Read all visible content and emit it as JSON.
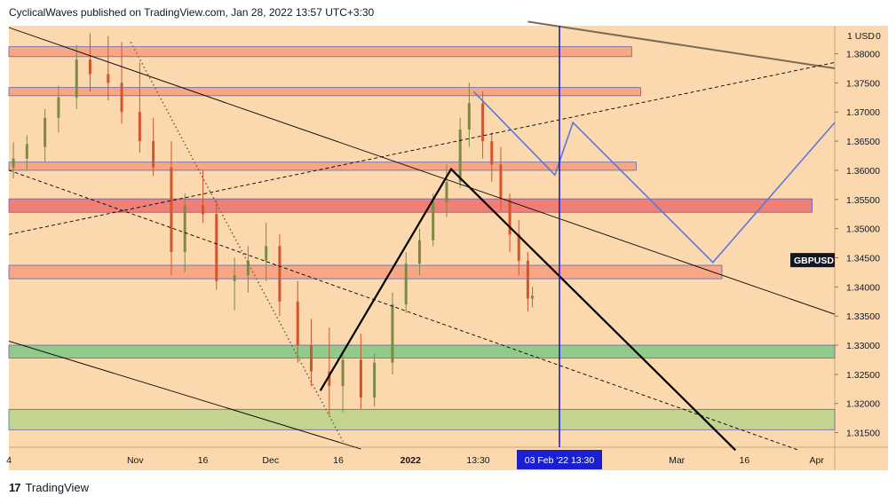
{
  "header": {
    "publish_line": "CyclicalWaves published on TradingView.com, Jan 28, 2022 13:57 UTC+3:30"
  },
  "footer": {
    "logo_glyph": "17",
    "brand": "TradingView"
  },
  "colors": {
    "background": "#fbd8ad",
    "zone_salmon": "#f7a583",
    "zone_red": "#f07b74",
    "zone_green": "#8dc98b",
    "zone_olive": "#bfd48f",
    "candle_up": "#7d8a43",
    "candle_down": "#d2552e",
    "projection": "#5b78dc",
    "cursor": "#1a1fd0",
    "channel_line": "#000000",
    "long_trend": "#7a6a55"
  },
  "chart_data": {
    "type": "candlestick",
    "symbol": "GBPUSD",
    "price_axis": {
      "unit_label": "1 USD",
      "unit_suffix": "0",
      "ticks": [
        "1.38000",
        "1.37500",
        "1.37000",
        "1.36500",
        "1.36000",
        "1.35500",
        "1.35000",
        "1.34500",
        "1.34000",
        "1.33500",
        "1.33000",
        "1.32500",
        "1.32000",
        "1.31500"
      ],
      "ylim": [
        1.3125,
        1.3848
      ]
    },
    "time_axis": {
      "tick_labels": [
        {
          "label": "4",
          "date": "2021-10-04"
        },
        {
          "label": "Nov",
          "date": "2021-11-01"
        },
        {
          "label": "16",
          "date": "2021-11-16"
        },
        {
          "label": "Dec",
          "date": "2021-12-01"
        },
        {
          "label": "16",
          "date": "2021-12-16"
        },
        {
          "label": "2022",
          "date": "2022-01-01"
        },
        {
          "label": "13:30",
          "date": "2022-01-16"
        },
        {
          "label": "Mar",
          "date": "2022-03-01"
        },
        {
          "label": "16",
          "date": "2022-03-16"
        },
        {
          "label": "Apr",
          "date": "2022-04-01"
        }
      ],
      "xlim": [
        "2021-10-04",
        "2022-04-05"
      ],
      "cursor_label": "03 Feb '22   13:30",
      "cursor_date": "2022-02-03"
    },
    "last_price_label": "GBPUSD",
    "zones": [
      {
        "from": 1.3795,
        "to": 1.3812,
        "start": "2021-10-04",
        "end": "2022-02-19",
        "color": "zone_salmon"
      },
      {
        "from": 1.3728,
        "to": 1.3742,
        "start": "2021-10-04",
        "end": "2022-02-21",
        "color": "zone_salmon"
      },
      {
        "from": 1.36,
        "to": 1.3614,
        "start": "2021-10-04",
        "end": "2022-02-20",
        "color": "zone_salmon"
      },
      {
        "from": 1.3528,
        "to": 1.3551,
        "start": "2021-10-04",
        "end": "2022-03-31",
        "color": "zone_red"
      },
      {
        "from": 1.3414,
        "to": 1.3437,
        "start": "2021-10-04",
        "end": "2022-03-11",
        "color": "zone_salmon"
      },
      {
        "from": 1.3278,
        "to": 1.33,
        "start": "2021-10-04",
        "end": "2022-04-05",
        "color": "zone_green"
      },
      {
        "from": 1.3155,
        "to": 1.319,
        "start": "2021-10-04",
        "end": "2022-04-05",
        "color": "zone_olive"
      }
    ],
    "lines": [
      {
        "kind": "long_trend",
        "points": [
          [
            "2022-01-27",
            1.3855
          ],
          [
            "2022-04-05",
            1.3775
          ]
        ]
      },
      {
        "kind": "channel_thin",
        "points": [
          [
            "2021-10-04",
            1.3845
          ],
          [
            "2022-04-05",
            1.3353
          ]
        ]
      },
      {
        "kind": "channel_thin",
        "points": [
          [
            "2021-10-04",
            1.3307
          ],
          [
            "2021-12-21",
            1.3122
          ]
        ]
      },
      {
        "kind": "dashed",
        "points": [
          [
            "2021-10-04",
            1.36
          ],
          [
            "2022-03-28",
            1.312
          ]
        ]
      },
      {
        "kind": "dashed",
        "points": [
          [
            "2021-10-04",
            1.349
          ],
          [
            "2022-04-05",
            1.3785
          ]
        ]
      },
      {
        "kind": "dotted",
        "points": [
          [
            "2021-10-31",
            1.382
          ],
          [
            "2021-12-17",
            1.3135
          ]
        ]
      },
      {
        "kind": "bold",
        "points": [
          [
            "2021-12-12",
            1.3222
          ],
          [
            "2022-01-10",
            1.3602
          ],
          [
            "2022-03-14",
            1.312
          ]
        ]
      },
      {
        "kind": "projection",
        "points": [
          [
            "2022-01-15",
            1.3735
          ],
          [
            "2022-02-02",
            1.3592
          ],
          [
            "2022-02-06",
            1.3682
          ],
          [
            "2022-03-09",
            1.3442
          ],
          [
            "2022-04-05",
            1.3682
          ]
        ]
      },
      {
        "kind": "cursor_vertical",
        "points": [
          [
            "2022-02-03",
            1.3848
          ],
          [
            "2022-02-03",
            1.3125
          ]
        ]
      }
    ],
    "ohlc_daily": [
      {
        "d": "2021-10-05",
        "o": 1.3605,
        "h": 1.3648,
        "l": 1.3586,
        "c": 1.362
      },
      {
        "d": "2021-10-08",
        "o": 1.362,
        "h": 1.366,
        "l": 1.36,
        "c": 1.3645
      },
      {
        "d": "2021-10-12",
        "o": 1.364,
        "h": 1.3705,
        "l": 1.3615,
        "c": 1.369
      },
      {
        "d": "2021-10-15",
        "o": 1.369,
        "h": 1.3745,
        "l": 1.3665,
        "c": 1.3725
      },
      {
        "d": "2021-10-19",
        "o": 1.3725,
        "h": 1.3815,
        "l": 1.3705,
        "c": 1.379
      },
      {
        "d": "2021-10-22",
        "o": 1.379,
        "h": 1.3835,
        "l": 1.3735,
        "c": 1.3765
      },
      {
        "d": "2021-10-26",
        "o": 1.3765,
        "h": 1.383,
        "l": 1.372,
        "c": 1.375
      },
      {
        "d": "2021-10-29",
        "o": 1.375,
        "h": 1.382,
        "l": 1.368,
        "c": 1.37
      },
      {
        "d": "2021-11-02",
        "o": 1.37,
        "h": 1.3785,
        "l": 1.363,
        "c": 1.365
      },
      {
        "d": "2021-11-05",
        "o": 1.365,
        "h": 1.369,
        "l": 1.359,
        "c": 1.3605
      },
      {
        "d": "2021-11-09",
        "o": 1.3605,
        "h": 1.365,
        "l": 1.342,
        "c": 1.346
      },
      {
        "d": "2021-11-12",
        "o": 1.346,
        "h": 1.356,
        "l": 1.3425,
        "c": 1.354
      },
      {
        "d": "2021-11-16",
        "o": 1.354,
        "h": 1.36,
        "l": 1.351,
        "c": 1.3525
      },
      {
        "d": "2021-11-19",
        "o": 1.3525,
        "h": 1.355,
        "l": 1.3395,
        "c": 1.341
      },
      {
        "d": "2021-11-23",
        "o": 1.341,
        "h": 1.345,
        "l": 1.336,
        "c": 1.342
      },
      {
        "d": "2021-11-26",
        "o": 1.342,
        "h": 1.347,
        "l": 1.339,
        "c": 1.3445
      },
      {
        "d": "2021-11-30",
        "o": 1.3445,
        "h": 1.351,
        "l": 1.341,
        "c": 1.347
      },
      {
        "d": "2021-12-03",
        "o": 1.347,
        "h": 1.349,
        "l": 1.335,
        "c": 1.3375
      },
      {
        "d": "2021-12-07",
        "o": 1.3375,
        "h": 1.341,
        "l": 1.327,
        "c": 1.33
      },
      {
        "d": "2021-12-10",
        "o": 1.33,
        "h": 1.3345,
        "l": 1.323,
        "c": 1.3255
      },
      {
        "d": "2021-12-14",
        "o": 1.3255,
        "h": 1.333,
        "l": 1.318,
        "c": 1.323
      },
      {
        "d": "2021-12-17",
        "o": 1.323,
        "h": 1.329,
        "l": 1.3185,
        "c": 1.3275
      },
      {
        "d": "2021-12-21",
        "o": 1.3275,
        "h": 1.332,
        "l": 1.319,
        "c": 1.321
      },
      {
        "d": "2021-12-24",
        "o": 1.321,
        "h": 1.3285,
        "l": 1.3195,
        "c": 1.327
      },
      {
        "d": "2021-12-28",
        "o": 1.327,
        "h": 1.339,
        "l": 1.325,
        "c": 1.337
      },
      {
        "d": "2021-12-31",
        "o": 1.337,
        "h": 1.346,
        "l": 1.3355,
        "c": 1.344
      },
      {
        "d": "2022-01-03",
        "o": 1.344,
        "h": 1.35,
        "l": 1.342,
        "c": 1.348
      },
      {
        "d": "2022-01-06",
        "o": 1.348,
        "h": 1.356,
        "l": 1.347,
        "c": 1.3545
      },
      {
        "d": "2022-01-09",
        "o": 1.3545,
        "h": 1.361,
        "l": 1.352,
        "c": 1.358
      },
      {
        "d": "2022-01-12",
        "o": 1.358,
        "h": 1.369,
        "l": 1.357,
        "c": 1.367
      },
      {
        "d": "2022-01-14",
        "o": 1.367,
        "h": 1.375,
        "l": 1.364,
        "c": 1.3715
      },
      {
        "d": "2022-01-17",
        "o": 1.3715,
        "h": 1.3735,
        "l": 1.362,
        "c": 1.365
      },
      {
        "d": "2022-01-19",
        "o": 1.365,
        "h": 1.3665,
        "l": 1.358,
        "c": 1.361
      },
      {
        "d": "2022-01-21",
        "o": 1.361,
        "h": 1.364,
        "l": 1.353,
        "c": 1.355
      },
      {
        "d": "2022-01-23",
        "o": 1.355,
        "h": 1.356,
        "l": 1.346,
        "c": 1.349
      },
      {
        "d": "2022-01-25",
        "o": 1.349,
        "h": 1.3515,
        "l": 1.342,
        "c": 1.3445
      },
      {
        "d": "2022-01-27",
        "o": 1.3445,
        "h": 1.346,
        "l": 1.3358,
        "c": 1.338
      },
      {
        "d": "2022-01-28",
        "o": 1.338,
        "h": 1.34,
        "l": 1.3365,
        "c": 1.3385
      }
    ]
  }
}
